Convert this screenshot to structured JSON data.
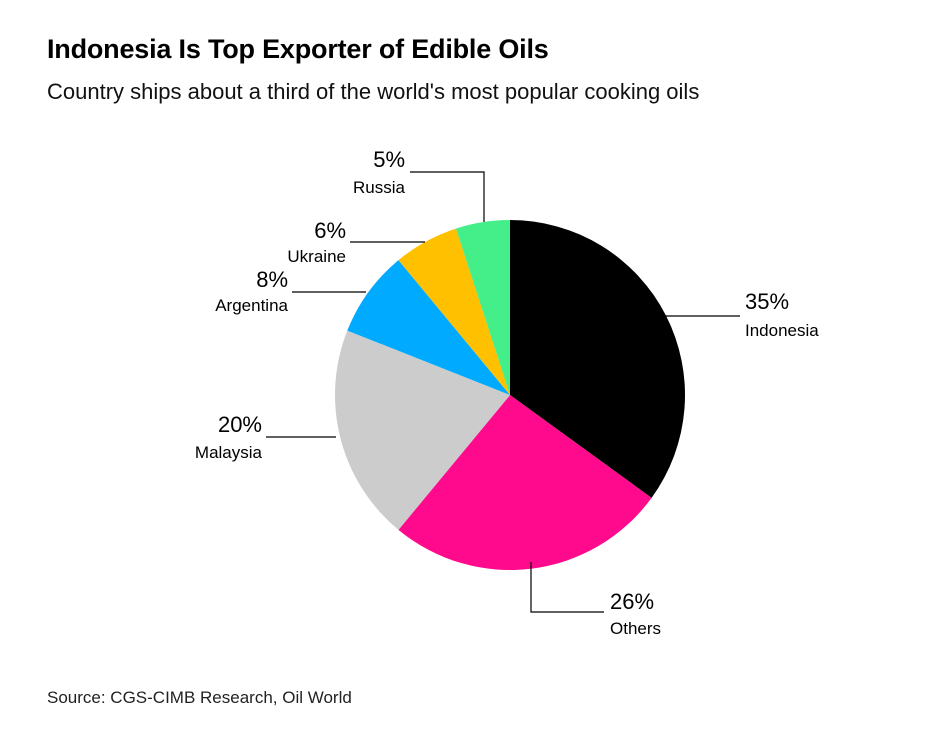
{
  "title": "Indonesia Is Top Exporter of Edible Oils",
  "subtitle": "Country ships about a third of the world's most popular cooking oils",
  "source": "Source: CGS-CIMB Research, Oil World",
  "chart_data": {
    "type": "pie",
    "slices": [
      {
        "label": "Indonesia",
        "value": 35,
        "display": "35%",
        "color": "#000000"
      },
      {
        "label": "Others",
        "value": 26,
        "display": "26%",
        "color": "#ff0a8c"
      },
      {
        "label": "Malaysia",
        "value": 20,
        "display": "20%",
        "color": "#cccccc"
      },
      {
        "label": "Argentina",
        "value": 8,
        "display": "8%",
        "color": "#00aaff"
      },
      {
        "label": "Ukraine",
        "value": 6,
        "display": "6%",
        "color": "#ffc000"
      },
      {
        "label": "Russia",
        "value": 5,
        "display": "5%",
        "color": "#44ee88"
      }
    ]
  }
}
